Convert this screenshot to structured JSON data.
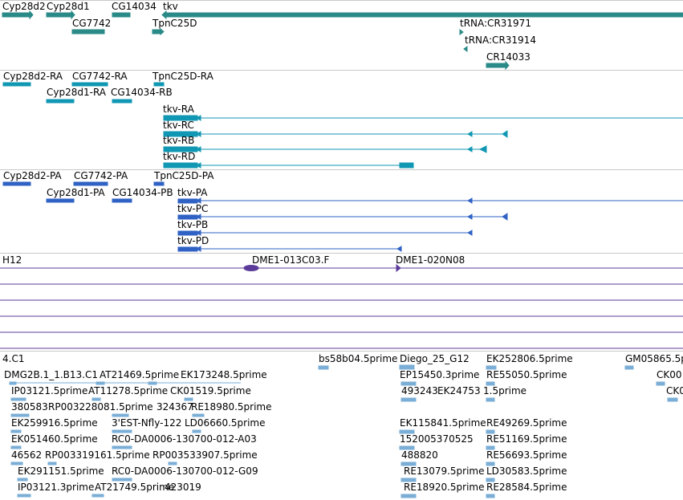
{
  "colors": {
    "gene": "#2a8a88",
    "transcript": "#1097b3",
    "protein": "#2f62c4",
    "clone": "#5b3a9a",
    "est": "#7aaed6",
    "separator": "#c8c8c8"
  },
  "tracks": {
    "genes": {
      "labels": [
        "Cyp28d2",
        "Cyp28d1",
        "CG14034",
        "tkv",
        "CG7742",
        "TpnC25D",
        "tRNA:CR31971",
        "tRNA:CR31914",
        "CR14033"
      ]
    },
    "transcripts": {
      "labels": [
        "Cyp28d2-RA",
        "CG7742-RA",
        "TpnC25D-RA",
        "Cyp28d1-RA",
        "CG14034-RB",
        "tkv-RA",
        "tkv-RC",
        "tkv-RB",
        "tkv-RD"
      ]
    },
    "proteins": {
      "labels": [
        "Cyp28d2-PA",
        "CG7742-PA",
        "TpnC25D-PA",
        "Cyp28d1-PA",
        "CG14034-PB",
        "tkv-PA",
        "tkv-PC",
        "tkv-PB",
        "tkv-PD"
      ]
    },
    "clones": {
      "labels": [
        "H12",
        "DME1-013C03.F",
        "DME1-020N08"
      ]
    },
    "ests": {
      "labels": [
        "4.C1",
        "bs58b04.5prime",
        "Diego_25_G12",
        "EK252806.5prime",
        "GM05865.5p",
        "DMG2B.1_1.B13.C1",
        "AT21469.5prime",
        "EK173248.5prime",
        "EP15450.3prime",
        "RE55050.5prime",
        "CK00",
        "IP03121.5prime",
        "AT11278.5prime",
        "CK01519.5prime",
        "493243",
        "EK24753",
        "1.5prime",
        "CK0",
        "380583",
        "RP003228081.5prime",
        "324367",
        "RE18980.5prime",
        "EK259916.5prime",
        "3'EST-Nfly-122",
        "LD06660.5prime",
        "EK115841.5prime",
        "RE49269.5prime",
        "EK051460.5prime",
        "RC0-DA0006-130700-012-A03",
        "152005370525",
        "RE51169.5prime",
        "46562",
        "RP003319161.5prime",
        "RP003533907.5prime",
        "488820",
        "RE56693.5prime",
        "EK291151.5prime",
        "RC0-DA0006-130700-012-G09",
        "RE13079.5prime",
        "LD30583.5prime",
        "IP03121.3prime",
        "AT21749.5prime",
        "423019",
        "RE18920.5prime",
        "RE28584.5prime"
      ]
    }
  }
}
